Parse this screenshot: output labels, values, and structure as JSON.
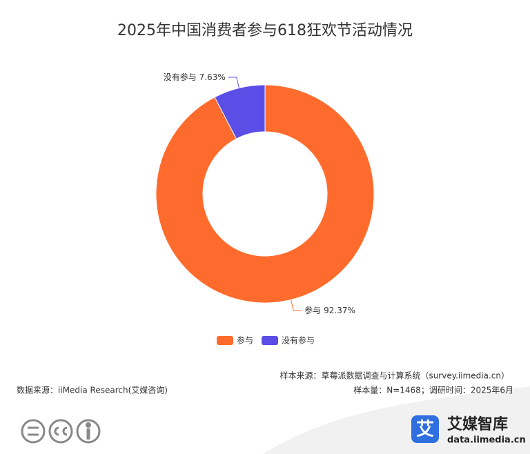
{
  "chart_data": {
    "type": "donut",
    "title": "2025年中国消费者参与618狂欢节活动情况",
    "categories": [
      "参与",
      "没有参与"
    ],
    "values": [
      92.37,
      7.63
    ],
    "value_labels": [
      "92.37%",
      "7.63%"
    ],
    "colors": [
      "#ff6b2c",
      "#5a4ee6"
    ],
    "legend": "bottom",
    "sample_source": "样本来源：草莓派数据调查与计算系统（survey.iimedia.cn）",
    "data_source": "数据来源：iiMedia Research(艾媒咨询)",
    "sample_info": "样本量：N=1468；调研时间：2025年6月"
  },
  "branding": {
    "icon": "艾",
    "name": "艾媒智库",
    "url": "data.iimedia.cn"
  }
}
